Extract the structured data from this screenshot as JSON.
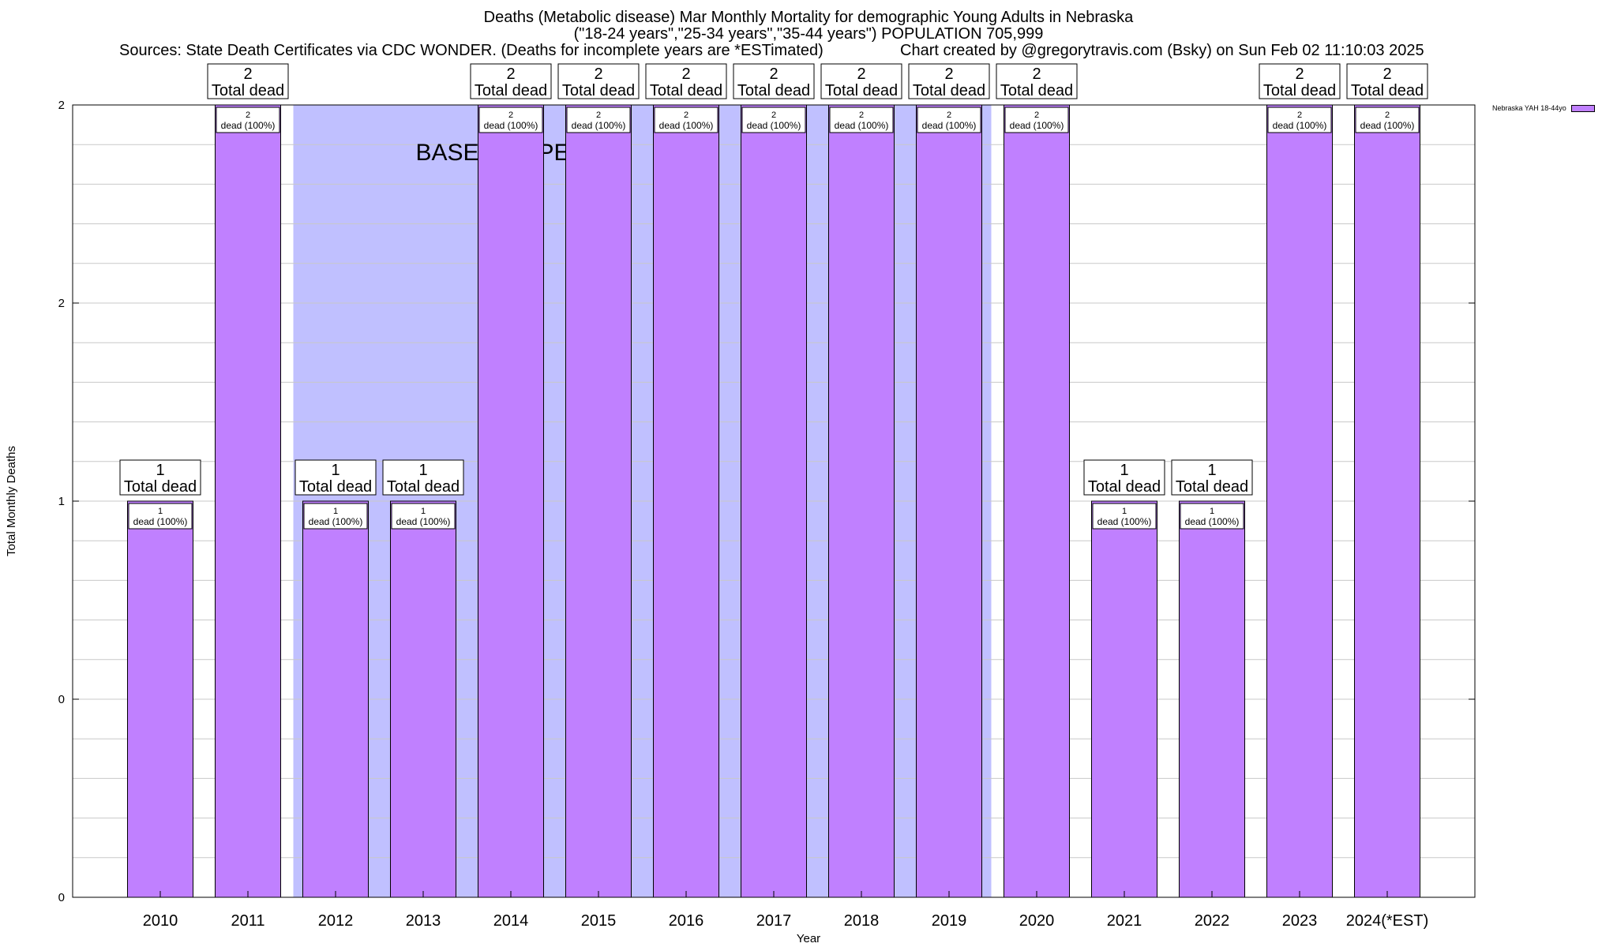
{
  "title": {
    "line1": "Deaths (Metabolic disease) Mar Monthly Mortality for demographic Young Adults in Nebraska",
    "line2": "(\"18-24 years\",\"25-34 years\",\"35-44 years\") POPULATION 705,999",
    "sources": "Sources: State Death Certificates via CDC WONDER. (Deaths for incomplete years are *ESTimated)",
    "credit": "Chart created by @gregorytravis.com (Bsky) on Sun Feb 02 11:10:03 2025"
  },
  "chart_data": {
    "type": "bar",
    "categories": [
      "2010",
      "2011",
      "2012",
      "2013",
      "2014",
      "2015",
      "2016",
      "2017",
      "2018",
      "2019",
      "2020",
      "2021",
      "2022",
      "2023",
      "2024(*EST)"
    ],
    "series": [
      {
        "name": "Nebraska YAH 18-44yo",
        "values": [
          1,
          2,
          1,
          1,
          2,
          2,
          2,
          2,
          2,
          2,
          2,
          1,
          1,
          2,
          2
        ]
      }
    ],
    "bar_labels": [
      "1 dead (100%)",
      "2 dead (100%)",
      "1 dead (100%)",
      "1 dead (100%)",
      "2 dead (100%)",
      "2 dead (100%)",
      "2 dead (100%)",
      "2 dead (100%)",
      "2 dead (100%)",
      "2 dead (100%)",
      "2 dead (100%)",
      "1 dead (100%)",
      "1 dead (100%)",
      "2 dead (100%)",
      "2 dead (100%)"
    ],
    "total_labels": [
      "1 Total dead",
      "2 Total dead",
      "1 Total dead",
      "1 Total dead",
      "2 Total dead",
      "2 Total dead",
      "2 Total dead",
      "2 Total dead",
      "2 Total dead",
      "2 Total dead",
      "2 Total dead",
      "1 Total dead",
      "1 Total dead",
      "2 Total dead",
      "2 Total dead"
    ],
    "ylim": [
      0,
      2
    ],
    "yticks": [
      {
        "value": 0,
        "label": "0"
      },
      {
        "value": 0.5,
        "label": "0"
      },
      {
        "value": 1,
        "label": "1"
      },
      {
        "value": 1.5,
        "label": "2"
      },
      {
        "value": 2,
        "label": "2"
      }
    ],
    "minor_grid_step": 0.1,
    "xlabel": "Year",
    "ylabel": "Total Monthly Deaths",
    "baseline_label": "BASELINE PERIOD",
    "baseline_range": [
      "2012",
      "2019"
    ],
    "legend_position": "top-right",
    "colors": {
      "bar": "#c080ff",
      "baseline": "#c0c0ff",
      "grid": "#c8c8c8"
    }
  }
}
